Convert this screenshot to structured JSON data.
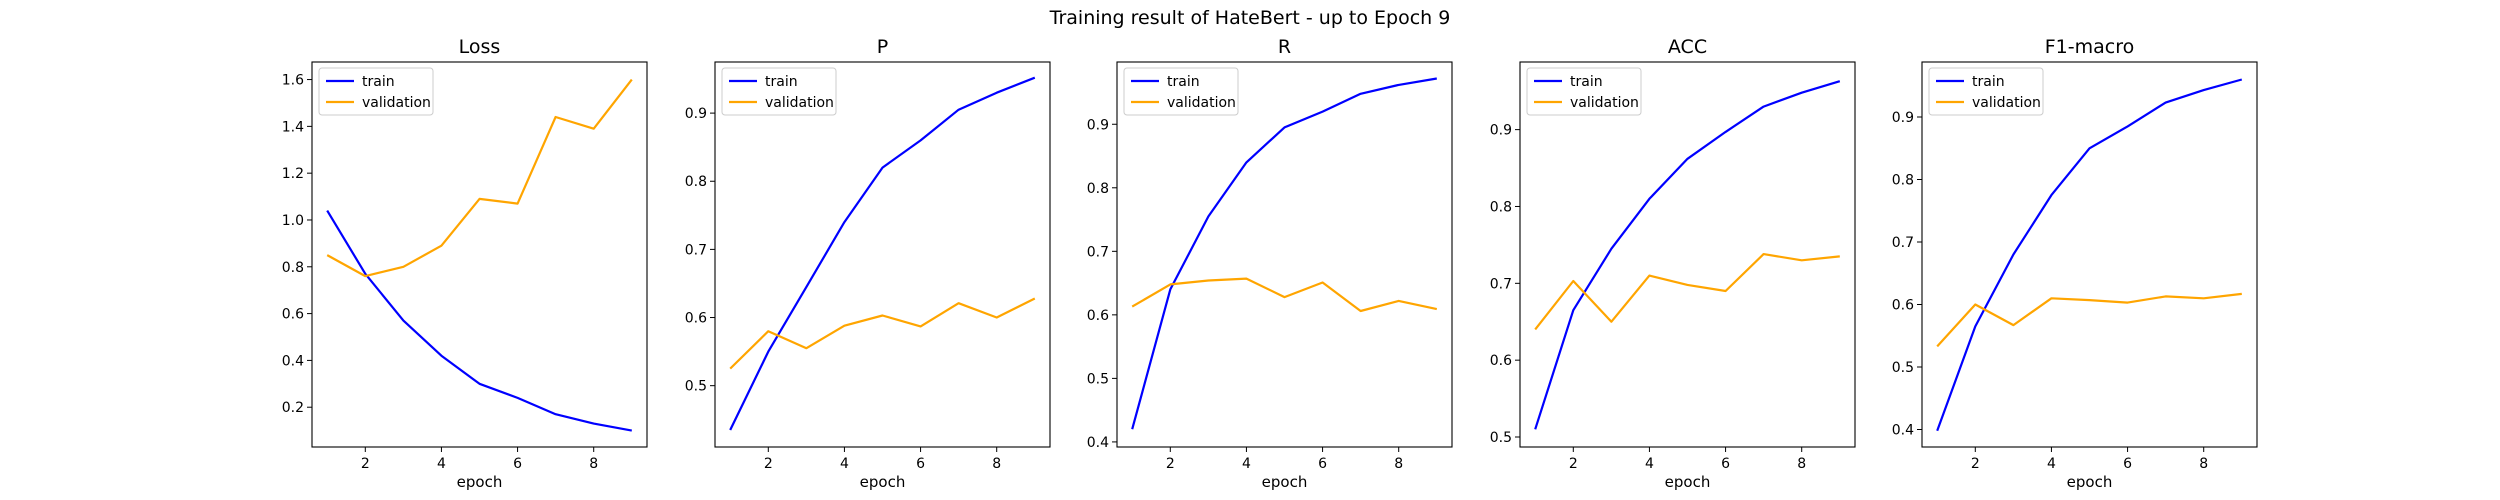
{
  "figure": {
    "suptitle": "Training result of HateBert - up to Epoch 9"
  },
  "chart_data": [
    {
      "type": "line",
      "title": "Loss",
      "xlabel": "epoch",
      "ylabel": "",
      "x": [
        1,
        2,
        3,
        4,
        5,
        6,
        7,
        8,
        9
      ],
      "xlim": [
        0.6,
        9.4
      ],
      "ylim": [
        0.03,
        1.675
      ],
      "xticks": [
        2,
        4,
        6,
        8
      ],
      "yticks": [
        0.2,
        0.4,
        0.6,
        0.8,
        1.0,
        1.2,
        1.4,
        1.6
      ],
      "ytick_labels": [
        "0.2",
        "0.4",
        "0.6",
        "0.8",
        "1.0",
        "1.2",
        "1.4",
        "1.6"
      ],
      "legend": "upper-left",
      "grid": false,
      "series": [
        {
          "name": "train",
          "color": "#0000ff",
          "values": [
            1.04,
            0.77,
            0.57,
            0.42,
            0.3,
            0.24,
            0.17,
            0.13,
            0.1
          ]
        },
        {
          "name": "validation",
          "color": "#ffa500",
          "values": [
            0.85,
            0.76,
            0.8,
            0.89,
            1.09,
            1.07,
            1.44,
            1.39,
            1.6
          ]
        }
      ]
    },
    {
      "type": "line",
      "title": "P",
      "xlabel": "epoch",
      "ylabel": "",
      "x": [
        1,
        2,
        3,
        4,
        5,
        6,
        7,
        8,
        9
      ],
      "xlim": [
        0.6,
        9.4
      ],
      "ylim": [
        0.41,
        0.975
      ],
      "xticks": [
        2,
        4,
        6,
        8
      ],
      "yticks": [
        0.5,
        0.6,
        0.7,
        0.8,
        0.9
      ],
      "ytick_labels": [
        "0.5",
        "0.6",
        "0.7",
        "0.8",
        "0.9"
      ],
      "legend": "upper-left",
      "grid": false,
      "series": [
        {
          "name": "train",
          "color": "#0000ff",
          "values": [
            0.435,
            0.55,
            0.645,
            0.74,
            0.82,
            0.86,
            0.905,
            0.93,
            0.952
          ]
        },
        {
          "name": "validation",
          "color": "#ffa500",
          "values": [
            0.525,
            0.58,
            0.555,
            0.588,
            0.603,
            0.587,
            0.621,
            0.6,
            0.628
          ]
        }
      ]
    },
    {
      "type": "line",
      "title": "R",
      "xlabel": "epoch",
      "ylabel": "",
      "x": [
        1,
        2,
        3,
        4,
        5,
        6,
        7,
        8,
        9
      ],
      "xlim": [
        0.6,
        9.4
      ],
      "ylim": [
        0.392,
        0.998
      ],
      "xticks": [
        2,
        4,
        6,
        8
      ],
      "yticks": [
        0.4,
        0.5,
        0.6,
        0.7,
        0.8,
        0.9
      ],
      "ytick_labels": [
        "0.4",
        "0.5",
        "0.6",
        "0.7",
        "0.8",
        "0.9"
      ],
      "legend": "upper-left",
      "grid": false,
      "series": [
        {
          "name": "train",
          "color": "#0000ff",
          "values": [
            0.42,
            0.64,
            0.755,
            0.84,
            0.895,
            0.92,
            0.948,
            0.962,
            0.972
          ]
        },
        {
          "name": "validation",
          "color": "#ffa500",
          "values": [
            0.613,
            0.648,
            0.654,
            0.657,
            0.628,
            0.651,
            0.606,
            0.622,
            0.609
          ]
        }
      ]
    },
    {
      "type": "line",
      "title": "ACC",
      "xlabel": "epoch",
      "ylabel": "",
      "x": [
        1,
        2,
        3,
        4,
        5,
        6,
        7,
        8,
        9
      ],
      "xlim": [
        0.6,
        9.4
      ],
      "ylim": [
        0.487,
        0.988
      ],
      "xticks": [
        2,
        4,
        6,
        8
      ],
      "yticks": [
        0.5,
        0.6,
        0.7,
        0.8,
        0.9
      ],
      "ytick_labels": [
        "0.5",
        "0.6",
        "0.7",
        "0.8",
        "0.9"
      ],
      "legend": "upper-left",
      "grid": false,
      "series": [
        {
          "name": "train",
          "color": "#0000ff",
          "values": [
            0.51,
            0.665,
            0.745,
            0.81,
            0.862,
            0.897,
            0.93,
            0.948,
            0.963
          ]
        },
        {
          "name": "validation",
          "color": "#ffa500",
          "values": [
            0.64,
            0.703,
            0.65,
            0.71,
            0.698,
            0.69,
            0.738,
            0.73,
            0.735
          ]
        }
      ]
    },
    {
      "type": "line",
      "title": "F1-macro",
      "xlabel": "epoch",
      "ylabel": "",
      "x": [
        1,
        2,
        3,
        4,
        5,
        6,
        7,
        8,
        9
      ],
      "xlim": [
        0.6,
        9.4
      ],
      "ylim": [
        0.372,
        0.988
      ],
      "xticks": [
        2,
        4,
        6,
        8
      ],
      "yticks": [
        0.4,
        0.5,
        0.6,
        0.7,
        0.8,
        0.9
      ],
      "ytick_labels": [
        "0.4",
        "0.5",
        "0.6",
        "0.7",
        "0.8",
        "0.9"
      ],
      "legend": "upper-left",
      "grid": false,
      "series": [
        {
          "name": "train",
          "color": "#0000ff",
          "values": [
            0.398,
            0.565,
            0.68,
            0.775,
            0.85,
            0.885,
            0.923,
            0.943,
            0.96
          ]
        },
        {
          "name": "validation",
          "color": "#ffa500",
          "values": [
            0.533,
            0.6,
            0.567,
            0.61,
            0.607,
            0.603,
            0.613,
            0.61,
            0.617
          ]
        }
      ]
    }
  ]
}
